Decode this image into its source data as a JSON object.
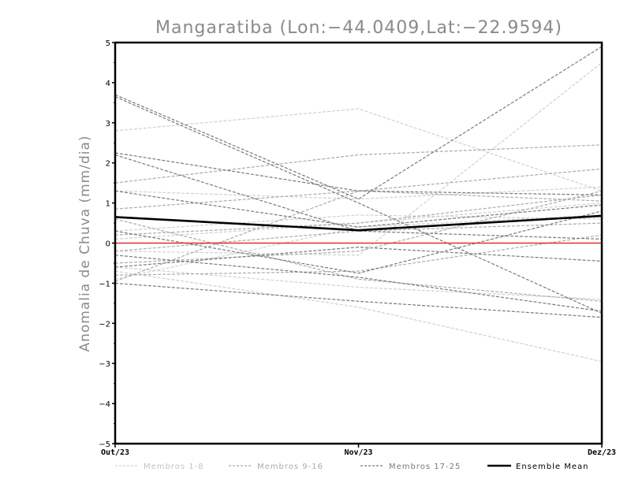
{
  "chart_data": {
    "type": "line",
    "title": "Mangaratiba (Lon:−44.0409,Lat:−22.9594)",
    "xlabel": "",
    "ylabel": "Anomalia de Chuva (mm/dia)",
    "categories": [
      "Out/23",
      "Nov/23",
      "Dez/23"
    ],
    "yticks": [
      "5",
      "4",
      "3",
      "2",
      "1",
      "0",
      "−1",
      "−2",
      "−3",
      "−4",
      "−5"
    ],
    "ytick_values": [
      5,
      4,
      3,
      2,
      1,
      0,
      -1,
      -2,
      -3,
      -4,
      -5
    ],
    "ylim": [
      -5,
      5
    ],
    "zero_line_color": "#e03030",
    "groups": [
      {
        "name": "Membros 1-8",
        "color": "#d0d0d0",
        "style": "dashed",
        "series": [
          [
            2.8,
            3.35,
            1.3
          ],
          [
            1.3,
            1.1,
            1.4
          ],
          [
            0.3,
            0.7,
            0.6
          ],
          [
            0.1,
            0.5,
            1.0
          ],
          [
            -0.2,
            -0.3,
            4.5
          ],
          [
            -0.6,
            -1.1,
            -1.4
          ],
          [
            -0.7,
            -1.6,
            -2.95
          ],
          [
            -0.9,
            0.4,
            0.7
          ]
        ]
      },
      {
        "name": "Membros 9-16",
        "color": "#ababab",
        "style": "dashed",
        "series": [
          [
            1.5,
            2.2,
            2.45
          ],
          [
            0.85,
            1.3,
            1.85
          ],
          [
            0.2,
            0.5,
            1.2
          ],
          [
            -0.2,
            0.3,
            0.5
          ],
          [
            -0.5,
            -0.2,
            1.3
          ],
          [
            -0.8,
            -0.7,
            0.2
          ],
          [
            0.6,
            -0.9,
            -1.45
          ],
          [
            -0.95,
            1.3,
            1.05
          ]
        ]
      },
      {
        "name": "Membros 17-25",
        "color": "#7a7a7a",
        "style": "dashed",
        "series": [
          [
            3.7,
            1.1,
            4.9
          ],
          [
            3.65,
            1.0,
            -1.75
          ],
          [
            2.25,
            1.3,
            1.2
          ],
          [
            2.2,
            0.3,
            0.1
          ],
          [
            1.3,
            0.4,
            0.95
          ],
          [
            0.3,
            -0.75,
            0.8
          ],
          [
            -0.3,
            -0.85,
            -1.7
          ],
          [
            -0.6,
            -0.1,
            -0.45
          ],
          [
            -1.0,
            -1.45,
            -1.85
          ]
        ]
      }
    ],
    "ensemble_mean": {
      "name": "Ensemble Mean",
      "color": "#000000",
      "values": [
        0.65,
        0.32,
        0.68
      ]
    },
    "legend_position": "bottom"
  }
}
